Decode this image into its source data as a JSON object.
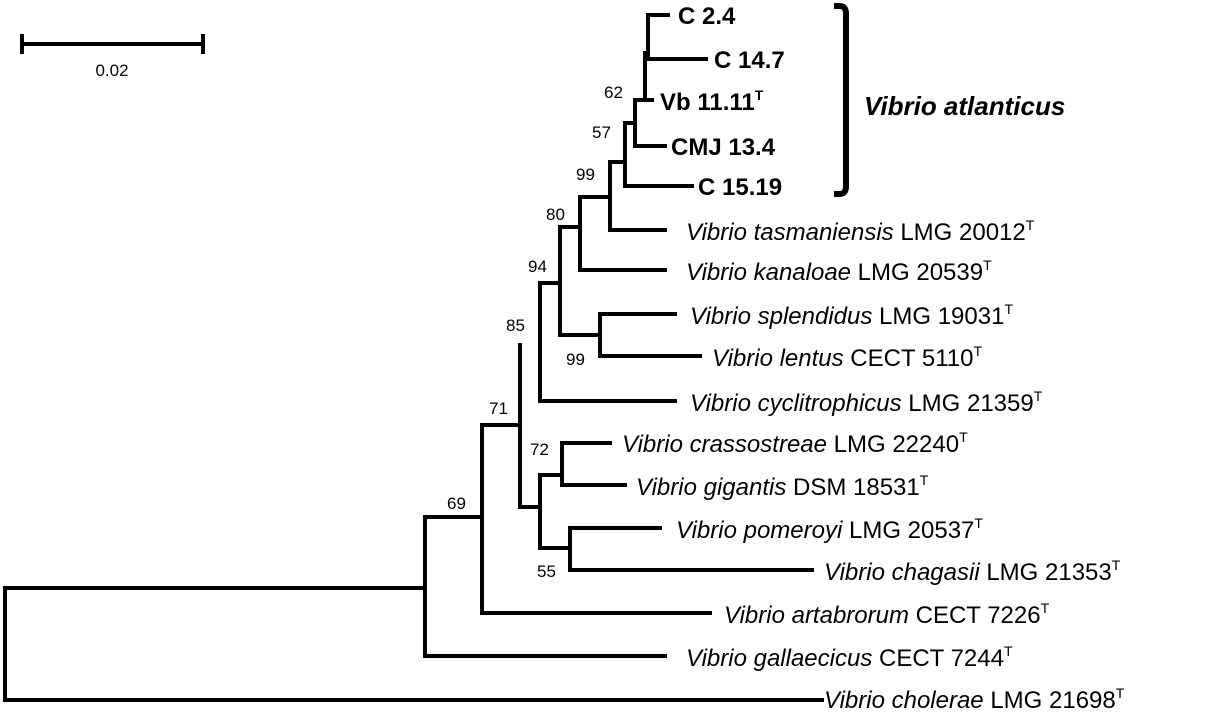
{
  "scale_bar": {
    "label": "0.02"
  },
  "clade": {
    "label": "Vibrio atlanticus"
  },
  "leaves": [
    {
      "italic": "",
      "rest": "C 2.4",
      "sup": "",
      "bold": true
    },
    {
      "italic": "",
      "rest": "C 14.7",
      "sup": "",
      "bold": true
    },
    {
      "italic": "",
      "rest": "Vb 11.11",
      "sup": "T",
      "bold": true
    },
    {
      "italic": "",
      "rest": "CMJ 13.4",
      "sup": "",
      "bold": true
    },
    {
      "italic": "",
      "rest": "C 15.19",
      "sup": "",
      "bold": true
    },
    {
      "italic": "Vibrio tasmaniensis",
      "rest": " LMG 20012",
      "sup": "T",
      "bold": false
    },
    {
      "italic": "Vibrio kanaloae",
      "rest": " LMG 20539",
      "sup": "T",
      "bold": false
    },
    {
      "italic": "Vibrio splendidus",
      "rest": " LMG 19031",
      "sup": "T",
      "bold": false
    },
    {
      "italic": "Vibrio lentus",
      "rest": " CECT 5110",
      "sup": "T",
      "bold": false
    },
    {
      "italic": "Vibrio cyclitrophicus",
      "rest": " LMG 21359",
      "sup": "T",
      "bold": false
    },
    {
      "italic": "Vibrio crassostreae",
      "rest": " LMG 22240",
      "sup": "T",
      "bold": false
    },
    {
      "italic": "Vibrio gigantis",
      "rest": " DSM 18531",
      "sup": "T",
      "bold": false
    },
    {
      "italic": "Vibrio pomeroyi",
      "rest": " LMG 20537",
      "sup": "T",
      "bold": false
    },
    {
      "italic": "Vibrio chagasii",
      "rest": " LMG 21353",
      "sup": "T",
      "bold": false
    },
    {
      "italic": "Vibrio artabrorum",
      "rest": " CECT 7226",
      "sup": "T",
      "bold": false
    },
    {
      "italic": "Vibrio gallaecicus",
      "rest": " CECT 7244",
      "sup": "T",
      "bold": false
    },
    {
      "italic": "Vibrio cholerae",
      "rest": "  LMG 21698",
      "sup": "T",
      "bold": false
    }
  ],
  "bootstrap": [
    "62",
    "57",
    "99",
    "80",
    "94",
    "99",
    "85",
    "72",
    "55",
    "71",
    "69"
  ]
}
